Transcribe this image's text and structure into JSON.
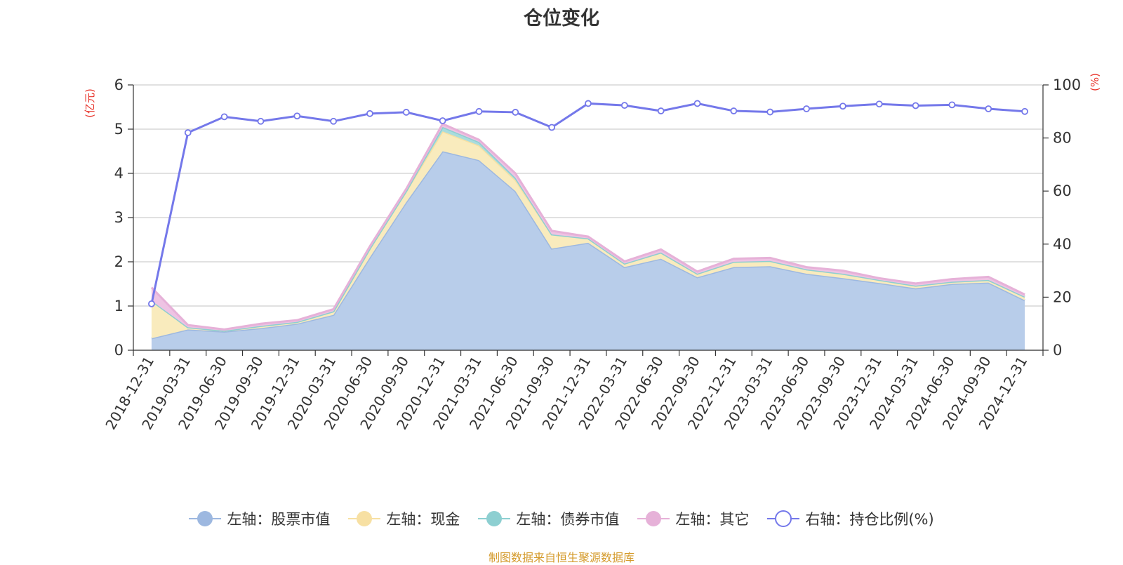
{
  "chart_data": {
    "type": "area",
    "title": "仓位变化",
    "source_note": "制图数据来自恒生聚源数据库",
    "left_axis": {
      "unit": "(亿元)",
      "ylim": [
        0,
        6
      ],
      "ticks": [
        0,
        1,
        2,
        3,
        4,
        5,
        6
      ]
    },
    "right_axis": {
      "unit": "(%)",
      "ylim": [
        0,
        100
      ],
      "ticks": [
        0,
        20,
        40,
        60,
        80,
        100
      ]
    },
    "categories": [
      "2018-12-31",
      "2019-03-31",
      "2019-06-30",
      "2019-09-30",
      "2019-12-31",
      "2020-03-31",
      "2020-06-30",
      "2020-09-30",
      "2020-12-31",
      "2021-03-31",
      "2021-06-30",
      "2021-09-30",
      "2021-12-31",
      "2022-03-31",
      "2022-06-30",
      "2022-09-30",
      "2022-12-31",
      "2023-03-31",
      "2023-06-30",
      "2023-09-30",
      "2023-12-31",
      "2024-03-31",
      "2024-06-30",
      "2024-09-30",
      "2024-12-31"
    ],
    "series": [
      {
        "name": "左轴：股票市值",
        "axis": "left",
        "stacked": true,
        "color": "#9db8e0",
        "fill": "#b8cdea",
        "values": [
          0.27,
          0.47,
          0.42,
          0.5,
          0.6,
          0.8,
          2.1,
          3.35,
          4.5,
          4.3,
          3.6,
          2.3,
          2.43,
          1.88,
          2.07,
          1.65,
          1.88,
          1.9,
          1.73,
          1.63,
          1.52,
          1.4,
          1.5,
          1.53,
          1.13
        ]
      },
      {
        "name": "左轴：现金",
        "axis": "left",
        "stacked": true,
        "color": "#f7e0a3",
        "fill": "#f9ebbd",
        "values": [
          0.85,
          0.05,
          0.02,
          0.05,
          0.04,
          0.08,
          0.2,
          0.25,
          0.45,
          0.33,
          0.25,
          0.32,
          0.1,
          0.08,
          0.14,
          0.08,
          0.12,
          0.12,
          0.1,
          0.1,
          0.07,
          0.06,
          0.05,
          0.06,
          0.08
        ]
      },
      {
        "name": "左轴：债券市值",
        "axis": "left",
        "stacked": true,
        "color": "#8dcfd1",
        "fill": "#a9dcdd",
        "values": [
          0,
          0,
          0,
          0,
          0,
          0,
          0,
          0,
          0.1,
          0.08,
          0.05,
          0,
          0,
          0,
          0,
          0,
          0,
          0,
          0,
          0,
          0,
          0,
          0,
          0,
          0
        ]
      },
      {
        "name": "左轴：其它",
        "axis": "left",
        "stacked": true,
        "color": "#e6b1d8",
        "fill": "#eec3e3",
        "values": [
          0.3,
          0.05,
          0.03,
          0.05,
          0.04,
          0.05,
          0.05,
          0.05,
          0.07,
          0.05,
          0.1,
          0.08,
          0.04,
          0.05,
          0.07,
          0.05,
          0.07,
          0.07,
          0.05,
          0.07,
          0.04,
          0.05,
          0.06,
          0.07,
          0.05
        ]
      },
      {
        "name": "右轴：持仓比例(%)",
        "axis": "right",
        "stacked": false,
        "color": "#7478ea",
        "fill": "#ffffff",
        "values": [
          17.5,
          82,
          88,
          86.3,
          88.3,
          86.3,
          89.2,
          89.7,
          86.5,
          90,
          89.7,
          84,
          93,
          92.3,
          90.2,
          93,
          90.2,
          89.8,
          91,
          92,
          92.8,
          92.2,
          92.5,
          91,
          90
        ]
      }
    ],
    "grid": true,
    "legend_position": "bottom"
  }
}
